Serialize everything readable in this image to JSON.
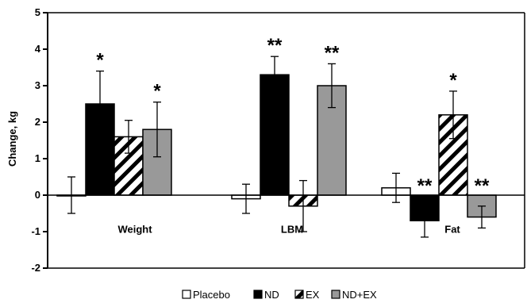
{
  "chart_data": {
    "type": "bar",
    "ylabel": "Change, kg",
    "ylim": [
      -2,
      5
    ],
    "yticks": [
      5,
      4,
      3,
      2,
      1,
      0,
      -1,
      -2
    ],
    "categories": [
      "Weight",
      "LBM",
      "Fat"
    ],
    "series": [
      {
        "name": "Placebo",
        "color": "#ffffff",
        "pattern": "open",
        "values": [
          0.0,
          -0.1,
          0.2
        ],
        "errors": [
          0.5,
          0.4,
          0.4
        ],
        "sig": [
          "",
          "",
          ""
        ]
      },
      {
        "name": "ND",
        "color": "#000000",
        "pattern": "solid",
        "values": [
          2.5,
          3.3,
          -0.7
        ],
        "errors": [
          0.9,
          0.5,
          0.45
        ],
        "sig": [
          "*",
          "**",
          "**"
        ]
      },
      {
        "name": "EX",
        "color": "#ffffff",
        "pattern": "diagonal-stripes",
        "values": [
          1.6,
          -0.3,
          2.2
        ],
        "errors": [
          0.45,
          0.7,
          0.65
        ],
        "sig": [
          "",
          "",
          "*"
        ]
      },
      {
        "name": "ND+EX",
        "color": "#999999",
        "pattern": "solid-gray",
        "values": [
          1.8,
          3.0,
          -0.6
        ],
        "errors": [
          0.75,
          0.6,
          0.3
        ],
        "sig": [
          "*",
          "**",
          "**"
        ]
      }
    ],
    "legend": {
      "position": "bottom",
      "items": [
        "Placebo",
        "ND",
        "EX",
        "ND+EX"
      ]
    },
    "grid": false
  }
}
